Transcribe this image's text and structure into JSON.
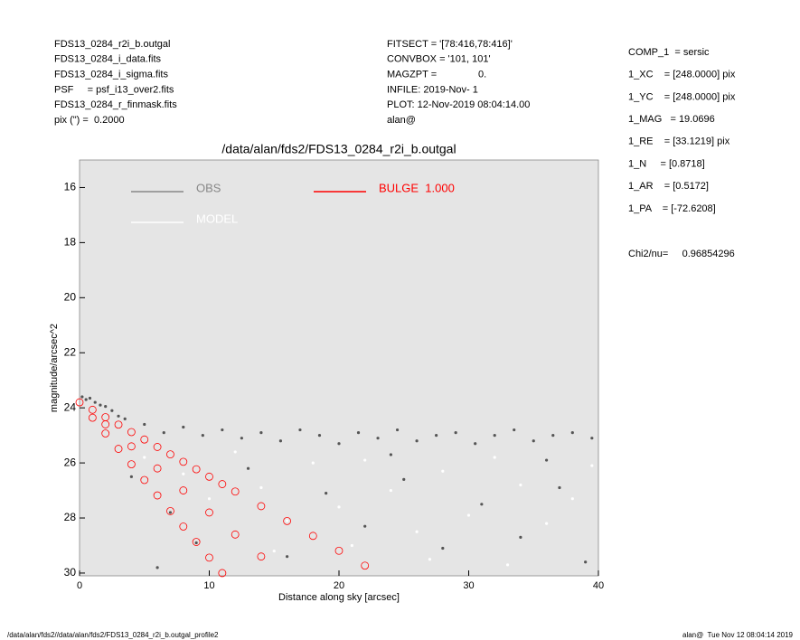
{
  "header": {
    "left": [
      "FDS13_0284_r2i_b.outgal",
      "FDS13_0284_i_data.fits",
      "FDS13_0284_i_sigma.fits",
      "PSF     = psf_i13_over2.fits",
      "FDS13_0284_r_finmask.fits",
      "pix (\") =  0.2000"
    ],
    "middle": [
      "FITSECT = '[78:416,78:416]'",
      "CONVBOX = '101, 101'",
      "MAGZPT =               0.",
      "INFILE: 2019-Nov- 1",
      "PLOT: 12-Nov-2019 08:04:14.00",
      "alan@"
    ],
    "right": [
      "COMP_1  = sersic",
      "1_XC    = [248.0000] pix",
      "1_YC    = [248.0000] pix",
      "1_MAG   = 19.0696",
      "1_RE    = [33.1219] pix",
      "1_N     = [0.8718]",
      "1_AR    = [0.5172]",
      "1_PA    = [-72.6208]"
    ],
    "chi2": "Chi2/nu=     0.96854296"
  },
  "footer": {
    "left": "/data/alan/fds2//data/alan/fds2/FDS13_0284_r2i_b.outgal_profile2",
    "right": "alan@  Tue Nov 12 08:04:14 2019"
  },
  "chart_data": {
    "type": "scatter",
    "title": "/data/alan/fds2/FDS13_0284_r2i_b.outgal",
    "x_label": "Distance along sky [arcsec]",
    "y_label": "magnitude/arcsec^2",
    "xlim": [
      0,
      40
    ],
    "xticks": [
      0,
      10,
      20,
      30,
      40
    ],
    "ylim": [
      30.1,
      15
    ],
    "yticks": [
      16,
      18,
      20,
      22,
      24,
      26,
      28,
      30
    ],
    "background": "#e5e5e5",
    "series": [
      {
        "name": "OBS",
        "color": "#555555",
        "x": [
          0.2,
          0.5,
          0.8,
          1.2,
          1.6,
          2.0,
          2.5,
          3,
          3.5,
          5,
          6.5,
          8,
          9.5,
          11,
          12.5,
          14,
          15.5,
          17,
          18.5,
          20,
          21.5,
          23,
          24.5,
          26,
          27.5,
          29,
          30.5,
          32,
          33.5,
          35,
          36.5,
          38,
          39.5,
          4,
          7,
          9,
          13,
          16,
          19,
          22,
          25,
          28,
          31,
          34,
          37,
          39,
          6,
          24,
          36
        ],
        "values": [
          23.6,
          23.7,
          23.65,
          23.8,
          23.9,
          23.95,
          24.1,
          24.3,
          24.4,
          24.6,
          24.9,
          24.7,
          25.0,
          24.8,
          25.1,
          24.9,
          25.2,
          24.8,
          25.0,
          25.3,
          24.9,
          25.1,
          24.8,
          25.2,
          25.0,
          24.9,
          25.3,
          25.0,
          24.8,
          25.2,
          25.0,
          24.9,
          25.1,
          26.5,
          27.8,
          28.9,
          26.2,
          29.4,
          27.1,
          28.3,
          26.6,
          29.1,
          27.5,
          28.7,
          26.9,
          29.6,
          29.8,
          25.7,
          25.9
        ]
      },
      {
        "name": "MODEL",
        "color": "#ffffff",
        "x": [
          5,
          8,
          10,
          12,
          14,
          16,
          18,
          20,
          22,
          24,
          26,
          28,
          30,
          32,
          34,
          36,
          38,
          39.5,
          27,
          15,
          33,
          21
        ],
        "values": [
          25.8,
          26.4,
          27.3,
          25.6,
          26.9,
          28.1,
          26.0,
          27.6,
          25.9,
          27.0,
          28.5,
          26.3,
          27.9,
          25.8,
          26.8,
          28.2,
          27.3,
          26.1,
          29.5,
          29.2,
          29.7,
          29.0
        ]
      },
      {
        "name": "BULGE  1.000",
        "color": "#ff0000",
        "x": [
          0,
          1,
          2,
          3,
          4,
          5,
          6,
          7,
          8,
          9,
          10,
          11,
          12,
          14,
          16,
          18,
          20,
          22,
          1,
          2,
          3,
          4,
          5,
          6,
          7,
          8,
          9,
          10,
          11,
          2,
          4,
          6,
          8,
          10,
          12,
          14
        ],
        "values": [
          23.8,
          24.07,
          24.34,
          24.61,
          24.88,
          25.15,
          25.42,
          25.69,
          25.96,
          26.23,
          26.5,
          26.77,
          27.04,
          27.57,
          28.11,
          28.65,
          29.19,
          29.73,
          24.36,
          24.93,
          25.49,
          26.05,
          26.62,
          27.18,
          27.75,
          28.31,
          28.87,
          29.44,
          30.0,
          24.6,
          25.4,
          26.2,
          27.0,
          27.8,
          28.6,
          29.4
        ]
      }
    ]
  }
}
